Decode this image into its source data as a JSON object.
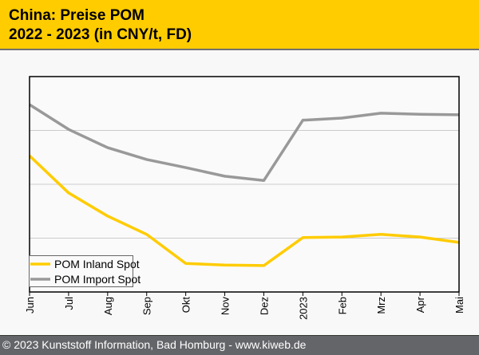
{
  "header": {
    "title_line1": "China: Preise POM",
    "title_line2": "2022 - 2023 (in CNY/t, FD)"
  },
  "footer": {
    "text": "© 2023 Kunststoff Information, Bad Homburg - www.kiweb.de"
  },
  "chart_data": {
    "type": "line",
    "title": "China: Preise POM 2022 - 2023 (in CNY/t, FD)",
    "xlabel": "",
    "ylabel": "",
    "categories": [
      "Jun",
      "Jul",
      "Aug",
      "Sep",
      "Okt",
      "Nov",
      "Dez",
      "2023",
      "Feb",
      "Mrz",
      "Apr",
      "Mai"
    ],
    "ylim": [
      0,
      4
    ],
    "y_note": "no y tick labels shown; values in relative gridline units",
    "grid": true,
    "legend": "bottom-left",
    "series": [
      {
        "name": "POM Inland Spot",
        "color": "#ffcc00",
        "values": [
          2.53,
          1.84,
          1.41,
          1.07,
          0.53,
          0.5,
          0.49,
          1.01,
          1.02,
          1.07,
          1.02,
          0.92
        ]
      },
      {
        "name": "POM Import Spot",
        "color": "#999999",
        "values": [
          3.48,
          3.02,
          2.68,
          2.46,
          2.31,
          2.15,
          2.07,
          3.19,
          3.23,
          3.32,
          3.3,
          3.29
        ]
      }
    ]
  }
}
